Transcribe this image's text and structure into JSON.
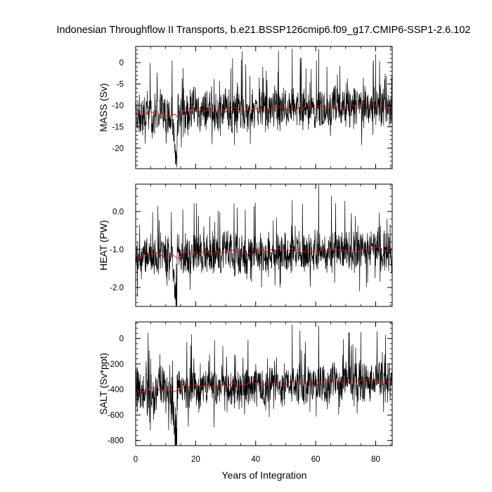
{
  "title": "Indonesian Throughflow II Transports, b.e21.BSSP126cmip6.f09_g17.CMIP6-SSP1-2.6.102",
  "xlabel": "Years of Integration",
  "chart_data": [
    {
      "type": "line",
      "ylabel": "MASS (Sv)",
      "xlim": [
        0,
        85.5
      ],
      "ylim": [
        -24.8,
        3.8
      ],
      "yticks": [
        0,
        -5,
        -10,
        -15,
        -20
      ],
      "ytick_labels": [
        "0",
        "-5",
        "-10",
        "-15",
        "-20"
      ],
      "xticks": [
        0,
        20,
        40,
        60,
        80
      ],
      "grid": false,
      "series": [
        {
          "color": "#000000",
          "kind": "monthly",
          "x": [
            0,
            2,
            4,
            6,
            8,
            10,
            12,
            13.7,
            14,
            16,
            18,
            20,
            22,
            24,
            26,
            28,
            30,
            32,
            34,
            36,
            38,
            40,
            42,
            44,
            46,
            48,
            50,
            52,
            54,
            56,
            58,
            60,
            62,
            64,
            66,
            68,
            70,
            72,
            74,
            76,
            78,
            80,
            82,
            84,
            85
          ],
          "y": [
            -12,
            -13,
            -11.5,
            -14,
            -10,
            -12,
            -13,
            -24.5,
            -11,
            -12.5,
            -12,
            -11,
            -12,
            -10.5,
            -11.5,
            -12,
            -10,
            -12,
            -11.5,
            -11,
            -12,
            -10.5,
            -11,
            -12,
            -10,
            -11.5,
            -10.5,
            -11,
            -10,
            -11,
            -10.5,
            -11,
            -10,
            -11.5,
            -10,
            -11,
            -10.5,
            -11,
            -10,
            -10.5,
            -10,
            -9.5,
            -10,
            -10.5,
            -11
          ],
          "peaks": [
            [
              52.2,
              3.3
            ],
            [
              61,
              3.2
            ],
            [
              13.7,
              -24.5
            ]
          ]
        },
        {
          "color": "#e31a1c",
          "kind": "annual-mean",
          "x": [
            0,
            2,
            4,
            6,
            8,
            10,
            12,
            14,
            16,
            18,
            20,
            22,
            24,
            26,
            28,
            30,
            32,
            34,
            36,
            38,
            40,
            42,
            44,
            46,
            48,
            50,
            52,
            54,
            56,
            58,
            60,
            62,
            64,
            66,
            68,
            70,
            72,
            74,
            76,
            78,
            80,
            82,
            84,
            85
          ],
          "y": [
            -12,
            -12.5,
            -12,
            -11.5,
            -12,
            -12.5,
            -12,
            -12.8,
            -11,
            -11.5,
            -11,
            -11.2,
            -10.8,
            -11.5,
            -11,
            -11.3,
            -10.5,
            -11,
            -11.2,
            -10.8,
            -11,
            -10.5,
            -11,
            -10.8,
            -10.5,
            -11,
            -10.3,
            -10.6,
            -10.8,
            -10.2,
            -10.9,
            -10.3,
            -10.6,
            -10.1,
            -10.4,
            -10.6,
            -10.2,
            -10.5,
            -9.8,
            -9.5,
            -9.8,
            -10.2,
            -10.5,
            -10
          ]
        }
      ]
    },
    {
      "type": "line",
      "ylabel": "HEAT (PW)",
      "xlim": [
        0,
        85.5
      ],
      "ylim": [
        -2.5,
        0.72
      ],
      "yticks": [
        0,
        -1,
        -2
      ],
      "ytick_labels": [
        "0.0",
        "-1.0",
        "-2.0"
      ],
      "xticks": [
        0,
        20,
        40,
        60,
        80
      ],
      "grid": false,
      "series": [
        {
          "color": "#000000",
          "kind": "monthly",
          "x": [
            0,
            2,
            4,
            6,
            8,
            10,
            12,
            13.7,
            14,
            16,
            18,
            20,
            22,
            24,
            26,
            28,
            30,
            32,
            34,
            36,
            38,
            40,
            42,
            44,
            46,
            48,
            50,
            52,
            54,
            56,
            58,
            60,
            62,
            64,
            66,
            68,
            70,
            72,
            74,
            76,
            78,
            80,
            82,
            84,
            85
          ],
          "y": [
            -1.15,
            -1.25,
            -1.1,
            -1.35,
            -1.0,
            -1.15,
            -1.3,
            -2.45,
            -1.05,
            -1.2,
            -1.15,
            -1.1,
            -1.2,
            -1.05,
            -1.15,
            -1.2,
            -1.0,
            -1.2,
            -1.15,
            -1.1,
            -1.2,
            -1.05,
            -1.1,
            -1.2,
            -1.0,
            -1.15,
            -1.05,
            -1.1,
            -1.0,
            -1.1,
            -1.05,
            -1.1,
            -1.0,
            -1.15,
            -1.0,
            -1.1,
            -1.05,
            -1.1,
            -1.0,
            -1.05,
            -1.0,
            -0.95,
            -1.0,
            -1.05,
            -1.1
          ],
          "peaks": [
            [
              61,
              0.7
            ],
            [
              52.2,
              0.3
            ],
            [
              13.7,
              -2.45
            ]
          ]
        },
        {
          "color": "#e31a1c",
          "kind": "annual-mean",
          "x": [
            0,
            2,
            4,
            6,
            8,
            10,
            12,
            14,
            16,
            18,
            20,
            22,
            24,
            26,
            28,
            30,
            32,
            34,
            36,
            38,
            40,
            42,
            44,
            46,
            48,
            50,
            52,
            54,
            56,
            58,
            60,
            62,
            64,
            66,
            68,
            70,
            72,
            74,
            76,
            78,
            80,
            82,
            84,
            85
          ],
          "y": [
            -1.15,
            -1.2,
            -1.15,
            -1.1,
            -1.15,
            -1.2,
            -1.15,
            -1.25,
            -1.05,
            -1.1,
            -1.05,
            -1.1,
            -1.05,
            -1.1,
            -1.05,
            -1.1,
            -1.0,
            -1.05,
            -1.1,
            -1.05,
            -1.1,
            -1.0,
            -1.05,
            -1.05,
            -1.0,
            -1.05,
            -1.0,
            -1.05,
            -1.05,
            -1.0,
            -1.1,
            -1.0,
            -1.05,
            -1.0,
            -1.0,
            -1.05,
            -1.0,
            -1.05,
            -0.95,
            -0.95,
            -0.95,
            -1.0,
            -1.05,
            -1.0
          ]
        }
      ]
    },
    {
      "type": "line",
      "ylabel": "SALT (Sv*ppt)",
      "xlim": [
        0,
        85.5
      ],
      "ylim": [
        -840,
        130
      ],
      "yticks": [
        0,
        -200,
        -400,
        -600,
        -800
      ],
      "ytick_labels": [
        "0",
        "-200",
        "-400",
        "-600",
        "-800"
      ],
      "xticks": [
        0,
        20,
        40,
        60,
        80
      ],
      "xtick_labels": [
        "0",
        "20",
        "40",
        "60",
        "80"
      ],
      "grid": false,
      "series": [
        {
          "color": "#000000",
          "kind": "monthly",
          "x": [
            0,
            2,
            4,
            6,
            8,
            10,
            12,
            13.7,
            14,
            16,
            18,
            20,
            22,
            24,
            26,
            28,
            30,
            32,
            34,
            36,
            38,
            40,
            42,
            44,
            46,
            48,
            50,
            52,
            54,
            56,
            58,
            60,
            62,
            64,
            66,
            68,
            70,
            72,
            74,
            76,
            78,
            80,
            82,
            84,
            85
          ],
          "y": [
            -400,
            -430,
            -380,
            -470,
            -330,
            -400,
            -440,
            -830,
            -370,
            -420,
            -400,
            -370,
            -400,
            -350,
            -380,
            -400,
            -330,
            -400,
            -380,
            -370,
            -400,
            -350,
            -370,
            -400,
            -330,
            -380,
            -350,
            -370,
            -330,
            -370,
            -350,
            -370,
            -330,
            -380,
            -330,
            -370,
            -350,
            -370,
            -330,
            -350,
            -330,
            -310,
            -330,
            -350,
            -370
          ],
          "peaks": [
            [
              52.2,
              110
            ],
            [
              61,
              100
            ],
            [
              13.7,
              -830
            ]
          ]
        },
        {
          "color": "#e31a1c",
          "kind": "annual-mean",
          "x": [
            0,
            2,
            4,
            6,
            8,
            10,
            12,
            14,
            16,
            18,
            20,
            22,
            24,
            26,
            28,
            30,
            32,
            34,
            36,
            38,
            40,
            42,
            44,
            46,
            48,
            50,
            52,
            54,
            56,
            58,
            60,
            62,
            64,
            66,
            68,
            70,
            72,
            74,
            76,
            78,
            80,
            82,
            84,
            85
          ],
          "y": [
            -400,
            -410,
            -400,
            -380,
            -400,
            -415,
            -400,
            -420,
            -360,
            -380,
            -365,
            -370,
            -355,
            -380,
            -365,
            -375,
            -345,
            -365,
            -370,
            -355,
            -365,
            -345,
            -360,
            -355,
            -345,
            -360,
            -340,
            -350,
            -355,
            -335,
            -360,
            -340,
            -350,
            -330,
            -340,
            -350,
            -335,
            -345,
            -320,
            -310,
            -320,
            -335,
            -345,
            -330
          ]
        }
      ]
    }
  ]
}
